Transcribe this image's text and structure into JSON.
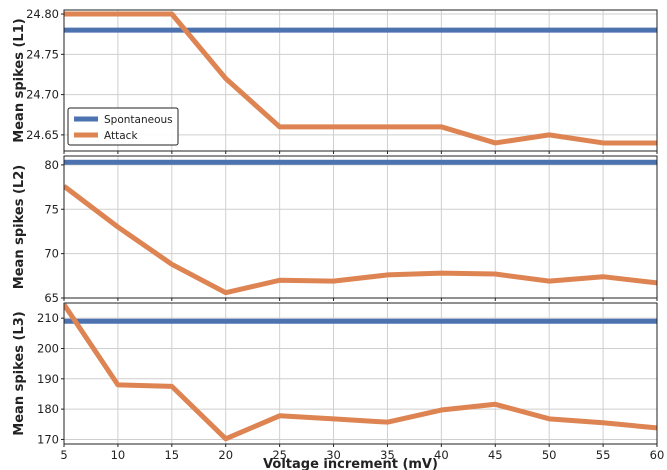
{
  "chart_data": {
    "type": "line",
    "xlabel": "Voltage increment (mV)",
    "x": [
      5,
      10,
      15,
      20,
      25,
      30,
      35,
      40,
      45,
      50,
      55,
      60
    ],
    "xlim": [
      5,
      60
    ],
    "x_ticks": [
      "5",
      "10",
      "15",
      "20",
      "25",
      "30",
      "35",
      "40",
      "45",
      "50",
      "55",
      "60"
    ],
    "grid": true,
    "legend": {
      "placement": "lower-left",
      "panel": 0
    },
    "colors": {
      "spontaneous": "#4c72b0",
      "attack": "#dd8452"
    },
    "panels": [
      {
        "ylabel": "Mean spikes (L1)",
        "ylim": [
          24.63,
          24.805
        ],
        "y_ticks": [
          "24.65",
          "24.70",
          "24.75",
          "24.80"
        ],
        "series": [
          {
            "name": "Spontaneous",
            "values": [
              24.78,
              24.78,
              24.78,
              24.78,
              24.78,
              24.78,
              24.78,
              24.78,
              24.78,
              24.78,
              24.78,
              24.78
            ]
          },
          {
            "name": "Attack",
            "values": [
              24.8,
              24.8,
              24.8,
              24.72,
              24.66,
              24.66,
              24.66,
              24.66,
              24.64,
              24.65,
              24.64,
              24.64
            ]
          }
        ]
      },
      {
        "ylabel": "Mean spikes (L2)",
        "ylim": [
          65,
          81
        ],
        "y_ticks": [
          "65",
          "70",
          "75",
          "80"
        ],
        "series": [
          {
            "name": "Spontaneous",
            "values": [
              80.3,
              80.3,
              80.3,
              80.3,
              80.3,
              80.3,
              80.3,
              80.3,
              80.3,
              80.3,
              80.3,
              80.3
            ]
          },
          {
            "name": "Attack",
            "values": [
              77.6,
              73.0,
              68.8,
              65.6,
              67.0,
              66.9,
              67.6,
              67.8,
              67.7,
              66.9,
              67.4,
              66.7
            ]
          }
        ]
      },
      {
        "ylabel": "Mean spikes (L3)",
        "ylim": [
          168.5,
          215
        ],
        "y_ticks": [
          "170",
          "180",
          "190",
          "200",
          "210"
        ],
        "series": [
          {
            "name": "Spontaneous",
            "values": [
              209,
              209,
              209,
              209,
              209,
              209,
              209,
              209,
              209,
              209,
              209,
              209
            ]
          },
          {
            "name": "Attack",
            "values": [
              214.5,
              188,
              187.5,
              170.2,
              177.8,
              176.8,
              175.7,
              179.7,
              181.6,
              176.8,
              175.5,
              173.8
            ]
          }
        ]
      }
    ]
  }
}
